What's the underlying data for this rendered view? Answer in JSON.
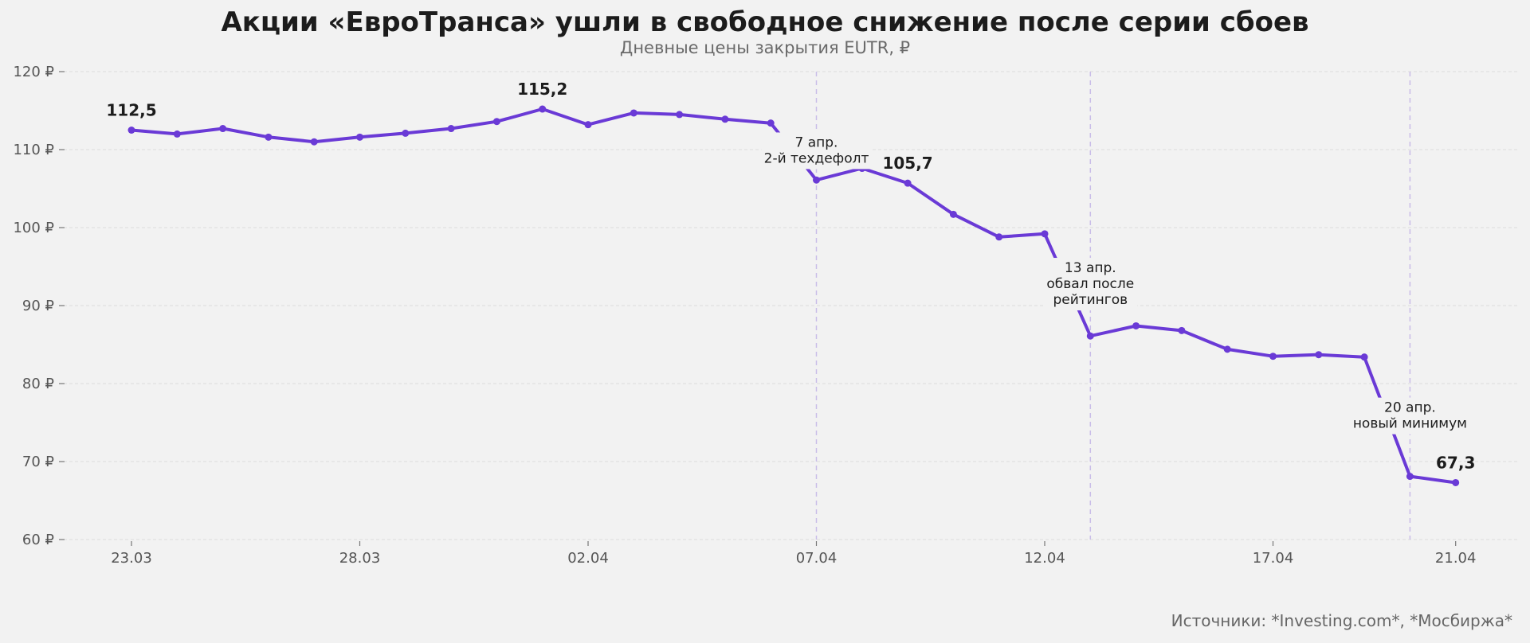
{
  "title": "Акции «ЕвроТранса» ушли в свободное снижение после серии сбоев",
  "subtitle": "Дневные цены закрытия EUTR, ₽",
  "source": "Источники: *Investing.com*, *Мосбиржа*",
  "colors": {
    "line": "#6a3ad6",
    "background": "#f2f2f2"
  },
  "chart_data": {
    "type": "line",
    "title": "Акции «ЕвроТранса» ушли в свободное снижение после серии сбоев",
    "subtitle": "Дневные цены закрытия EUTR, ₽",
    "xlabel": "",
    "ylabel": "",
    "ylim": [
      60,
      120
    ],
    "yticks": [
      60,
      70,
      80,
      90,
      100,
      110,
      120
    ],
    "ytick_labels": [
      "60 ₽",
      "70 ₽",
      "80 ₽",
      "90 ₽",
      "100 ₽",
      "110 ₽",
      "120 ₽"
    ],
    "xticks": [
      "23.03",
      "28.03",
      "02.04",
      "07.04",
      "12.04",
      "17.04",
      "21.04"
    ],
    "grid": true,
    "series": [
      {
        "x": [
          "23.03",
          "24.03",
          "25.03",
          "26.03",
          "27.03",
          "28.03",
          "29.03",
          "30.03",
          "31.03",
          "01.04",
          "02.04",
          "03.04",
          "04.04",
          "05.04",
          "06.04",
          "07.04",
          "08.04",
          "09.04",
          "10.04",
          "11.04",
          "12.04",
          "13.04",
          "14.04",
          "15.04",
          "16.04",
          "17.04",
          "18.04",
          "19.04",
          "20.04",
          "21.04"
        ],
        "values": [
          112.5,
          112.0,
          112.7,
          111.6,
          111.0,
          111.6,
          112.1,
          112.7,
          113.6,
          115.2,
          113.2,
          114.7,
          114.5,
          113.9,
          113.4,
          106.1,
          107.6,
          105.7,
          101.7,
          98.8,
          99.2,
          86.1,
          87.4,
          86.8,
          84.4,
          83.5,
          83.7,
          83.4,
          68.1,
          67.3
        ]
      }
    ],
    "value_labels": [
      {
        "x": "23.03",
        "text": "112,5"
      },
      {
        "x": "01.04",
        "text": "115,2"
      },
      {
        "x": "09.04",
        "text": "105,7"
      },
      {
        "x": "21.04",
        "text": "67,3"
      }
    ],
    "annotations": [
      {
        "x": "07.04",
        "lines": [
          "7 апр.",
          "2-й техдефолт"
        ]
      },
      {
        "x": "13.04",
        "lines": [
          "13 апр.",
          "обвал после",
          "рейтингов"
        ]
      },
      {
        "x": "20.04",
        "lines": [
          "20 апр.",
          "новый минимум"
        ]
      }
    ]
  }
}
